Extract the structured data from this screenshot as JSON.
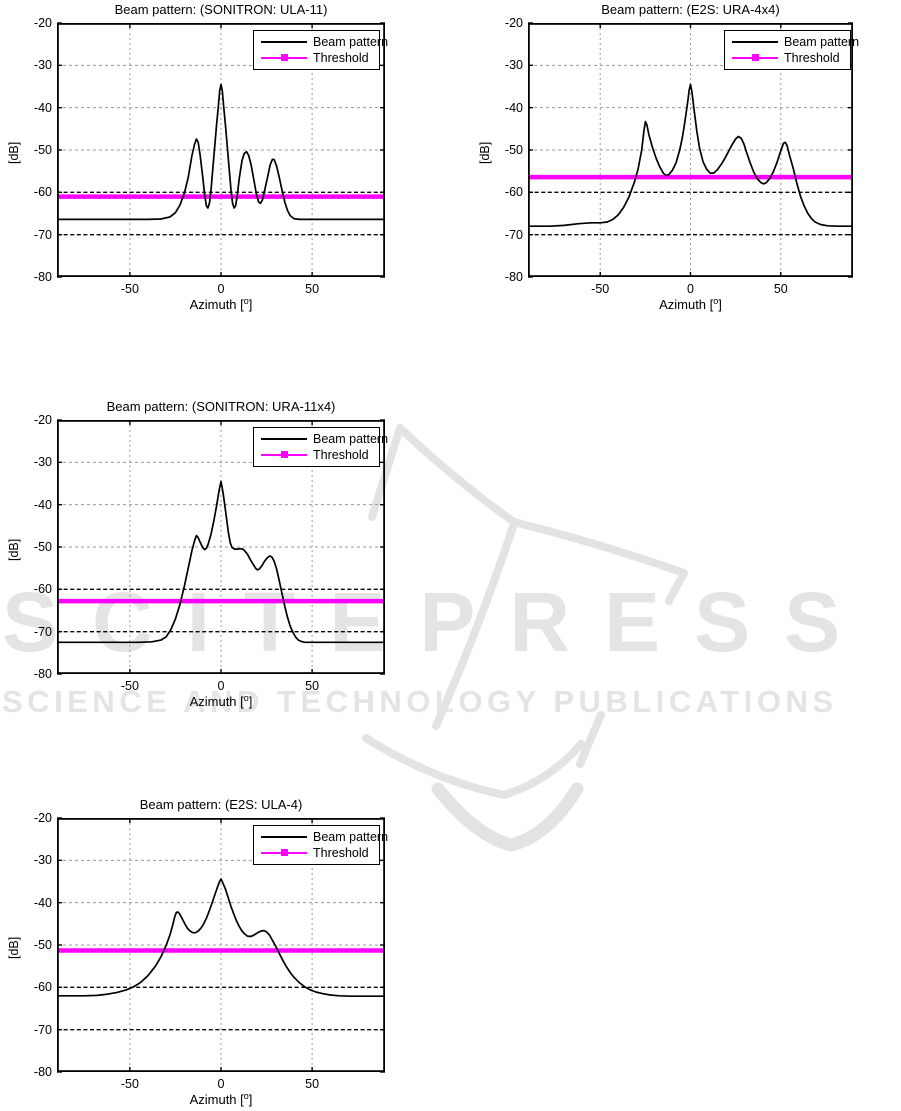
{
  "watermark": {
    "wordmark": "SCITEPRESS",
    "subtitle": "SCIENCE AND TECHNOLOGY PUBLICATIONS",
    "color": "#e4e4e4"
  },
  "colors": {
    "beam": "#000000",
    "threshold": "#ff00ff",
    "grid_gray": "#9b9b9b",
    "grid_dark": "#000000"
  },
  "chart_data": [
    {
      "type": "line",
      "title": "Beam pattern: (SONITRON: ULA-11)",
      "ylabel": "[dB]",
      "xlabel": "Azimuth [°]",
      "xlabel_text": "Azimuth [",
      "xlabel_sup": "o",
      "xlabel_end": "]",
      "xlim": [
        -90,
        90
      ],
      "ylim": [
        -80,
        -20
      ],
      "xticks": [
        -50,
        0,
        50
      ],
      "yticks": [
        -20,
        -30,
        -40,
        -50,
        -60,
        -70,
        -80
      ],
      "v_grid": [
        -50,
        0,
        50
      ],
      "h_grid_gray": [
        -30,
        -40,
        -50
      ],
      "h_grid_dark": [
        -60,
        -70
      ],
      "legend": [
        {
          "label": "Beam pattern",
          "color": "#000000"
        },
        {
          "label": "Threshold",
          "color": "#ff00ff"
        }
      ],
      "threshold": -61,
      "series": [
        [
          -90,
          -66.4
        ],
        [
          -50,
          -66.4
        ],
        [
          -40,
          -66.4
        ],
        [
          -33,
          -66.3
        ],
        [
          -28,
          -65.8
        ],
        [
          -25,
          -64.8
        ],
        [
          -22.5,
          -63
        ],
        [
          -20,
          -60
        ],
        [
          -18,
          -56.5
        ],
        [
          -16,
          -51.5
        ],
        [
          -14.5,
          -48.6
        ],
        [
          -13.5,
          -47.4
        ],
        [
          -12.5,
          -48.2
        ],
        [
          -11.5,
          -51
        ],
        [
          -10,
          -56.5
        ],
        [
          -9,
          -60.5
        ],
        [
          -8,
          -63.2
        ],
        [
          -7.2,
          -63.7
        ],
        [
          -6.3,
          -62.5
        ],
        [
          -5.5,
          -59.5
        ],
        [
          -4.5,
          -54.5
        ],
        [
          -3.5,
          -49.5
        ],
        [
          -2.5,
          -44.5
        ],
        [
          -1.5,
          -39.8
        ],
        [
          -0.7,
          -36
        ],
        [
          0,
          -34.5
        ],
        [
          0.7,
          -36
        ],
        [
          1.5,
          -39.8
        ],
        [
          2.5,
          -44.5
        ],
        [
          3.5,
          -49.5
        ],
        [
          4.5,
          -54.5
        ],
        [
          5.5,
          -59.5
        ],
        [
          6.3,
          -62.5
        ],
        [
          7.2,
          -63.7
        ],
        [
          8,
          -63.2
        ],
        [
          9,
          -60.5
        ],
        [
          10,
          -56.8
        ],
        [
          11.5,
          -52.5
        ],
        [
          12.8,
          -50.8
        ],
        [
          14,
          -50.4
        ],
        [
          15.2,
          -51.3
        ],
        [
          16.5,
          -53.5
        ],
        [
          18,
          -57
        ],
        [
          19.5,
          -60.5
        ],
        [
          20.7,
          -62.3
        ],
        [
          21.7,
          -62.6
        ],
        [
          22.7,
          -61.8
        ],
        [
          24,
          -59.5
        ],
        [
          25.5,
          -56.5
        ],
        [
          27,
          -53.5
        ],
        [
          28.2,
          -52.2
        ],
        [
          29.2,
          -52.3
        ],
        [
          30.5,
          -53.8
        ],
        [
          32,
          -56.5
        ],
        [
          33.5,
          -59.5
        ],
        [
          35,
          -62.3
        ],
        [
          36.5,
          -64.3
        ],
        [
          38,
          -65.5
        ],
        [
          40,
          -66.2
        ],
        [
          43,
          -66.4
        ],
        [
          50,
          -66.4
        ],
        [
          90,
          -66.4
        ]
      ]
    },
    {
      "type": "line",
      "title": "Beam pattern: (E2S: URA-4x4)",
      "ylabel": "[dB]",
      "xlabel": "Azimuth [°]",
      "xlabel_text": "Azimuth [",
      "xlabel_sup": "o",
      "xlabel_end": "]",
      "xlim": [
        -90,
        90
      ],
      "ylim": [
        -80,
        -20
      ],
      "xticks": [
        -50,
        0,
        50
      ],
      "yticks": [
        -20,
        -30,
        -40,
        -50,
        -60,
        -70,
        -80
      ],
      "v_grid": [
        -50,
        0,
        50
      ],
      "h_grid_gray": [
        -30,
        -40,
        -50
      ],
      "h_grid_dark": [
        -60,
        -70
      ],
      "legend": [
        {
          "label": "Beam pattern",
          "color": "#000000"
        },
        {
          "label": "Threshold",
          "color": "#ff00ff"
        }
      ],
      "threshold": -56.4,
      "series": [
        [
          -90,
          -68
        ],
        [
          -78,
          -68
        ],
        [
          -70,
          -67.8
        ],
        [
          -62,
          -67.4
        ],
        [
          -55,
          -67.2
        ],
        [
          -50,
          -67.2
        ],
        [
          -46,
          -67
        ],
        [
          -43,
          -66.4
        ],
        [
          -40,
          -65.3
        ],
        [
          -37,
          -63.5
        ],
        [
          -34,
          -61
        ],
        [
          -31,
          -57.5
        ],
        [
          -29,
          -54.5
        ],
        [
          -27,
          -50
        ],
        [
          -25.8,
          -45.5
        ],
        [
          -25,
          -43.3
        ],
        [
          -24.2,
          -44
        ],
        [
          -23,
          -46.5
        ],
        [
          -21,
          -49.5
        ],
        [
          -19,
          -52
        ],
        [
          -17,
          -54
        ],
        [
          -15,
          -55.5
        ],
        [
          -13.5,
          -56
        ],
        [
          -12,
          -55.8
        ],
        [
          -10,
          -54.8
        ],
        [
          -8,
          -53
        ],
        [
          -6,
          -50
        ],
        [
          -4.5,
          -47
        ],
        [
          -3,
          -43
        ],
        [
          -1.5,
          -38.5
        ],
        [
          -0.7,
          -35.8
        ],
        [
          0,
          -34.5
        ],
        [
          0.8,
          -36.2
        ],
        [
          2,
          -40.5
        ],
        [
          3.5,
          -45.5
        ],
        [
          5,
          -49.5
        ],
        [
          7,
          -52.8
        ],
        [
          9,
          -54.6
        ],
        [
          11,
          -55.5
        ],
        [
          13,
          -55.4
        ],
        [
          15,
          -54.6
        ],
        [
          17,
          -53.4
        ],
        [
          19,
          -52
        ],
        [
          21,
          -50.4
        ],
        [
          23,
          -48.8
        ],
        [
          25,
          -47.4
        ],
        [
          26.5,
          -46.8
        ],
        [
          28,
          -47.2
        ],
        [
          29.5,
          -48.5
        ],
        [
          31,
          -50.5
        ],
        [
          33,
          -53
        ],
        [
          35,
          -55.2
        ],
        [
          37,
          -56.8
        ],
        [
          39,
          -57.7
        ],
        [
          40.5,
          -58
        ],
        [
          42,
          -57.7
        ],
        [
          44,
          -56.7
        ],
        [
          46,
          -55
        ],
        [
          48,
          -52.8
        ],
        [
          50,
          -50.2
        ],
        [
          51.5,
          -48.4
        ],
        [
          52.5,
          -48.2
        ],
        [
          53.5,
          -49
        ],
        [
          55,
          -51.5
        ],
        [
          57,
          -54.5
        ],
        [
          59,
          -58
        ],
        [
          61,
          -61
        ],
        [
          63,
          -63.3
        ],
        [
          65,
          -65
        ],
        [
          67,
          -66.2
        ],
        [
          69,
          -67
        ],
        [
          72,
          -67.6
        ],
        [
          76,
          -67.9
        ],
        [
          82,
          -68
        ],
        [
          90,
          -68
        ]
      ]
    },
    {
      "type": "line",
      "title": "Beam pattern: (SONITRON: URA-11x4)",
      "ylabel": "[dB]",
      "xlabel": "Azimuth [°]",
      "xlabel_text": "Azimuth [",
      "xlabel_sup": "o",
      "xlabel_end": "]",
      "xlim": [
        -90,
        90
      ],
      "ylim": [
        -80,
        -20
      ],
      "xticks": [
        -50,
        0,
        50
      ],
      "yticks": [
        -20,
        -30,
        -40,
        -50,
        -60,
        -70,
        -80
      ],
      "v_grid": [
        -50,
        0,
        50
      ],
      "h_grid_gray": [
        -30,
        -40,
        -50
      ],
      "h_grid_dark": [
        -60,
        -70
      ],
      "legend": [
        {
          "label": "Beam pattern",
          "color": "#000000"
        },
        {
          "label": "Threshold",
          "color": "#ff00ff"
        }
      ],
      "threshold": -62.8,
      "series": [
        [
          -90,
          -72.5
        ],
        [
          -55,
          -72.5
        ],
        [
          -45,
          -72.5
        ],
        [
          -38,
          -72.4
        ],
        [
          -33,
          -72
        ],
        [
          -30,
          -71.2
        ],
        [
          -27.5,
          -69.5
        ],
        [
          -25,
          -67
        ],
        [
          -22.5,
          -63.5
        ],
        [
          -20,
          -59
        ],
        [
          -18,
          -55
        ],
        [
          -16,
          -51
        ],
        [
          -14.5,
          -48.5
        ],
        [
          -13.5,
          -47.3
        ],
        [
          -12.5,
          -47.8
        ],
        [
          -11.5,
          -48.8
        ],
        [
          -10,
          -50.2
        ],
        [
          -9,
          -50.6
        ],
        [
          -8,
          -50.3
        ],
        [
          -7,
          -49.3
        ],
        [
          -5.5,
          -47
        ],
        [
          -4,
          -44
        ],
        [
          -2.5,
          -40.5
        ],
        [
          -1,
          -36.5
        ],
        [
          0,
          -34.5
        ],
        [
          1,
          -36.8
        ],
        [
          2,
          -39.8
        ],
        [
          3,
          -43.2
        ],
        [
          4,
          -46.4
        ],
        [
          5,
          -48.9
        ],
        [
          6,
          -50.1
        ],
        [
          7.5,
          -50.5
        ],
        [
          9,
          -50.5
        ],
        [
          10.5,
          -50.4
        ],
        [
          12,
          -50.5
        ],
        [
          13,
          -50.9
        ],
        [
          14.5,
          -51.7
        ],
        [
          16,
          -52.9
        ],
        [
          17.5,
          -54
        ],
        [
          19,
          -55
        ],
        [
          20,
          -55.4
        ],
        [
          21,
          -55.2
        ],
        [
          22.5,
          -54.4
        ],
        [
          24,
          -53.3
        ],
        [
          25.5,
          -52.5
        ],
        [
          26.8,
          -52.1
        ],
        [
          28,
          -52.4
        ],
        [
          29.2,
          -53.4
        ],
        [
          30.5,
          -55.2
        ],
        [
          32,
          -58
        ],
        [
          33.5,
          -61
        ],
        [
          35,
          -64
        ],
        [
          36.5,
          -66.6
        ],
        [
          38,
          -68.7
        ],
        [
          39.5,
          -70.2
        ],
        [
          41,
          -71.3
        ],
        [
          42.5,
          -72
        ],
        [
          44,
          -72.3
        ],
        [
          46,
          -72.5
        ],
        [
          50,
          -72.5
        ],
        [
          90,
          -72.5
        ]
      ]
    },
    {
      "type": "line",
      "title": "Beam pattern: (E2S: ULA-4)",
      "ylabel": "[dB]",
      "xlabel": "Azimuth [°]",
      "xlabel_text": "Azimuth [",
      "xlabel_sup": "o",
      "xlabel_end": "]",
      "xlim": [
        -90,
        90
      ],
      "ylim": [
        -80,
        -20
      ],
      "xticks": [
        -50,
        0,
        50
      ],
      "yticks": [
        -20,
        -30,
        -40,
        -50,
        -60,
        -70,
        -80
      ],
      "v_grid": [
        -50,
        0,
        50
      ],
      "h_grid_gray": [
        -30,
        -40,
        -50
      ],
      "h_grid_dark": [
        -60,
        -70
      ],
      "legend": [
        {
          "label": "Beam pattern",
          "color": "#000000"
        },
        {
          "label": "Threshold",
          "color": "#ff00ff"
        }
      ],
      "threshold": -51.3,
      "series": [
        [
          -90,
          -62
        ],
        [
          -75,
          -62
        ],
        [
          -68,
          -61.9
        ],
        [
          -62,
          -61.6
        ],
        [
          -57,
          -61.2
        ],
        [
          -52,
          -60.6
        ],
        [
          -48,
          -59.9
        ],
        [
          -44,
          -58.8
        ],
        [
          -40,
          -57.2
        ],
        [
          -36,
          -55
        ],
        [
          -33,
          -52.8
        ],
        [
          -30,
          -50
        ],
        [
          -28,
          -47.6
        ],
        [
          -26.5,
          -45.3
        ],
        [
          -25.3,
          -43.2
        ],
        [
          -24.5,
          -42.3
        ],
        [
          -23.7,
          -42.2
        ],
        [
          -22.8,
          -42.6
        ],
        [
          -21.5,
          -43.6
        ],
        [
          -20,
          -44.9
        ],
        [
          -18.5,
          -46
        ],
        [
          -17,
          -46.7
        ],
        [
          -15.5,
          -47.1
        ],
        [
          -14,
          -47.1
        ],
        [
          -12.5,
          -46.7
        ],
        [
          -11,
          -46
        ],
        [
          -9.5,
          -45
        ],
        [
          -8,
          -43.7
        ],
        [
          -6.5,
          -42
        ],
        [
          -5,
          -40.2
        ],
        [
          -3.5,
          -38.3
        ],
        [
          -2,
          -36.4
        ],
        [
          -1,
          -35.2
        ],
        [
          0,
          -34.4
        ],
        [
          1,
          -35.3
        ],
        [
          2.5,
          -36.9
        ],
        [
          4,
          -38.9
        ],
        [
          5.5,
          -40.9
        ],
        [
          7,
          -42.7
        ],
        [
          8.5,
          -44.3
        ],
        [
          10,
          -45.6
        ],
        [
          11.5,
          -46.7
        ],
        [
          13,
          -47.4
        ],
        [
          14.5,
          -47.9
        ],
        [
          16,
          -48
        ],
        [
          17.5,
          -47.8
        ],
        [
          19,
          -47.4
        ],
        [
          20.5,
          -47
        ],
        [
          22,
          -46.7
        ],
        [
          23.5,
          -46.6
        ],
        [
          25,
          -46.9
        ],
        [
          26.5,
          -47.6
        ],
        [
          28,
          -48.7
        ],
        [
          30,
          -50.3
        ],
        [
          32,
          -52
        ],
        [
          34,
          -53.7
        ],
        [
          36,
          -55.2
        ],
        [
          38,
          -56.5
        ],
        [
          40,
          -57.6
        ],
        [
          43,
          -58.9
        ],
        [
          46,
          -59.9
        ],
        [
          49,
          -60.6
        ],
        [
          52,
          -61.1
        ],
        [
          56,
          -61.5
        ],
        [
          60,
          -61.8
        ],
        [
          65,
          -62
        ],
        [
          72,
          -62.1
        ],
        [
          80,
          -62.1
        ],
        [
          90,
          -62.1
        ]
      ]
    }
  ]
}
